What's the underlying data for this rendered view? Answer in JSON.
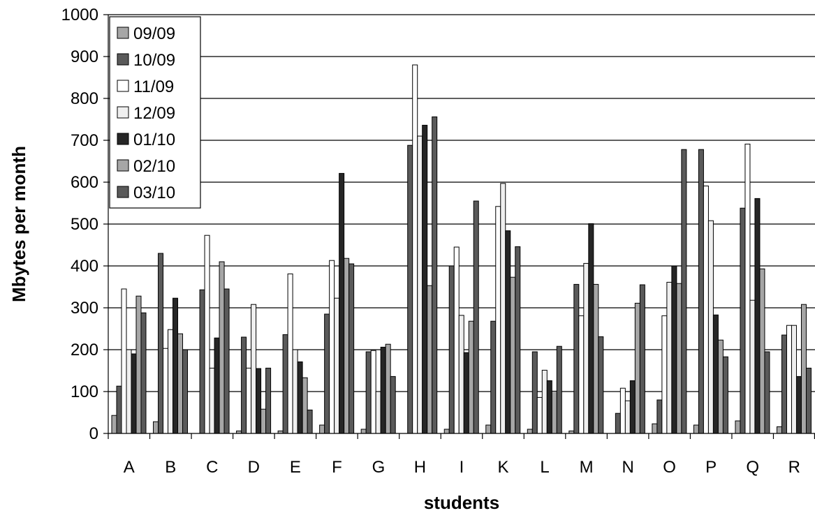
{
  "chart_data": {
    "type": "bar",
    "title": "",
    "xlabel": "students",
    "ylabel": "Mbytes per month",
    "ylim": [
      0,
      1000
    ],
    "yticks": [
      0,
      100,
      200,
      300,
      400,
      500,
      600,
      700,
      800,
      900,
      1000
    ],
    "grid": true,
    "legend_position": "top-left",
    "categories": [
      "A",
      "B",
      "C",
      "D",
      "E",
      "F",
      "G",
      "H",
      "I",
      "K",
      "L",
      "M",
      "N",
      "O",
      "P",
      "Q",
      "R"
    ],
    "series": [
      {
        "name": "09/09",
        "color": "#a6a6a6",
        "values": [
          43,
          28,
          0,
          6,
          6,
          20,
          10,
          0,
          10,
          20,
          10,
          6,
          0,
          23,
          20,
          30,
          16
        ]
      },
      {
        "name": "10/09",
        "color": "#5a5a5a",
        "values": [
          113,
          430,
          343,
          230,
          236,
          285,
          195,
          688,
          400,
          268,
          195,
          356,
          48,
          80,
          678,
          538,
          235
        ]
      },
      {
        "name": "11/09",
        "color": "#ffffff",
        "values": [
          345,
          203,
          473,
          156,
          381,
          413,
          198,
          880,
          445,
          542,
          86,
          281,
          108,
          281,
          591,
          691,
          258
        ]
      },
      {
        "name": "12/09",
        "color": "#efefef",
        "values": [
          200,
          248,
          156,
          308,
          200,
          323,
          100,
          710,
          282,
          597,
          151,
          406,
          78,
          361,
          508,
          318,
          258
        ]
      },
      {
        "name": "01/10",
        "color": "#262626",
        "values": [
          190,
          323,
          228,
          155,
          171,
          621,
          206,
          736,
          193,
          484,
          126,
          501,
          126,
          400,
          283,
          561,
          136
        ]
      },
      {
        "name": "02/10",
        "color": "#a6a6a6",
        "values": [
          328,
          238,
          410,
          58,
          133,
          418,
          213,
          353,
          268,
          373,
          101,
          356,
          311,
          358,
          223,
          393,
          308
        ]
      },
      {
        "name": "03/10",
        "color": "#5a5a5a",
        "values": [
          288,
          200,
          345,
          156,
          56,
          405,
          136,
          756,
          555,
          446,
          208,
          231,
          355,
          678,
          183,
          195,
          156
        ]
      }
    ]
  }
}
